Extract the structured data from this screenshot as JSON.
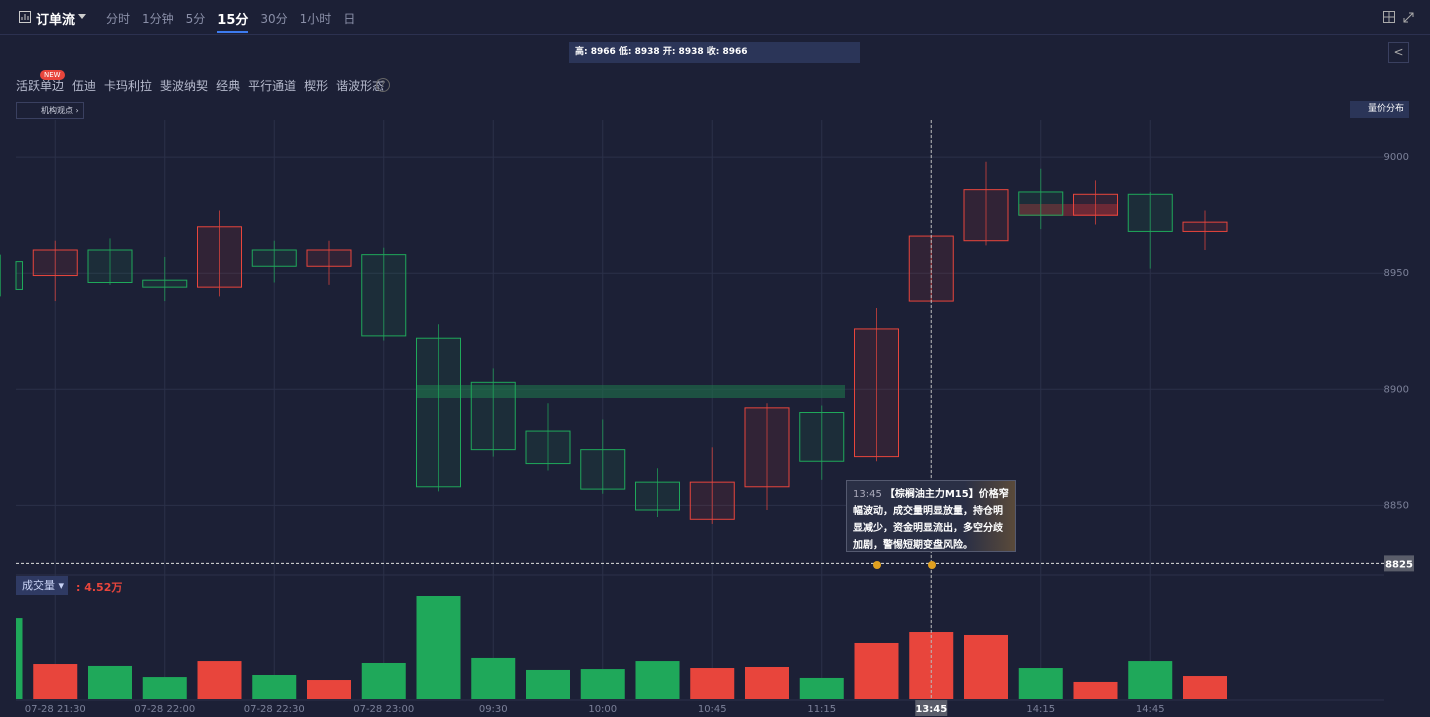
{
  "toolbar": {
    "title": "订单流",
    "periods": [
      "分时",
      "1分钟",
      "5分",
      "15分",
      "30分",
      "1小时",
      "日"
    ],
    "active_period": 3
  },
  "ohlc_info": "高: 8966 低: 8938 开: 8938 收: 8966",
  "tools": [
    "活跃单边",
    "伍迪",
    "卡玛利拉",
    "斐波纳契",
    "经典",
    "平行通道",
    "楔形",
    "谐波形态"
  ],
  "new_badge": "NEW",
  "view_button": "机构观点",
  "profile_button": "量价分布",
  "annotation": {
    "time": "13:45",
    "text": "【棕榈油主力M15】价格窄幅波动，成交量明显放量，持仓明显减少，资金明显流出，多空分歧加剧，警惕短期变盘风险。"
  },
  "chart_data": [
    {
      "type": "candlestick",
      "categories": [
        null,
        "07-28 21:30",
        null,
        "07-28 22:00",
        null,
        "07-28 22:30",
        null,
        "07-28 23:00",
        null,
        "09:30",
        null,
        "10:00",
        null,
        "10:45",
        null,
        "11:15",
        null,
        "13:45",
        null,
        "14:15",
        null,
        "14:45",
        null
      ],
      "open": [
        8955,
        8949,
        8960,
        8947,
        8944,
        8960,
        8953,
        8958,
        8922,
        8903,
        8882,
        8874,
        8860,
        8844,
        8858,
        8890,
        8871,
        8938,
        8964,
        8985,
        8975,
        8984,
        8968
      ],
      "high": [
        8958,
        8964,
        8965,
        8957,
        8977,
        8964,
        8964,
        8961,
        8928,
        8909,
        8894,
        8887,
        8866,
        8875,
        8894,
        8893,
        8935,
        8966,
        8998,
        8995,
        8990,
        8985,
        8977
      ],
      "low": [
        8940,
        8938,
        8945,
        8938,
        8940,
        8946,
        8945,
        8921,
        8856,
        8871,
        8865,
        8855,
        8845,
        8842,
        8848,
        8861,
        8869,
        8938,
        8962,
        8969,
        8971,
        8952,
        8960
      ],
      "close": [
        8943,
        8960,
        8946,
        8944,
        8970,
        8953,
        8960,
        8923,
        8858,
        8874,
        8868,
        8857,
        8848,
        8860,
        8892,
        8869,
        8926,
        8966,
        8986,
        8975,
        8984,
        8968,
        8972
      ],
      "up_color": "#e8453c",
      "down_color": "#1fa85a",
      "ylim": [
        8820,
        9016
      ],
      "yticks": [
        8850,
        8900,
        8950,
        9000
      ],
      "grid": true,
      "price_line": 8825,
      "highlight_index": 17
    },
    {
      "type": "bar",
      "title": "成交量",
      "value_label": ": 4.52万",
      "values": [
        5.46,
        2.36,
        2.23,
        1.48,
        2.56,
        1.62,
        1.28,
        2.43,
        6.95,
        2.77,
        1.96,
        2.02,
        2.56,
        2.09,
        2.16,
        1.42,
        3.78,
        4.52,
        4.32,
        2.09,
        1.15,
        2.56,
        1.55
      ]
    }
  ]
}
